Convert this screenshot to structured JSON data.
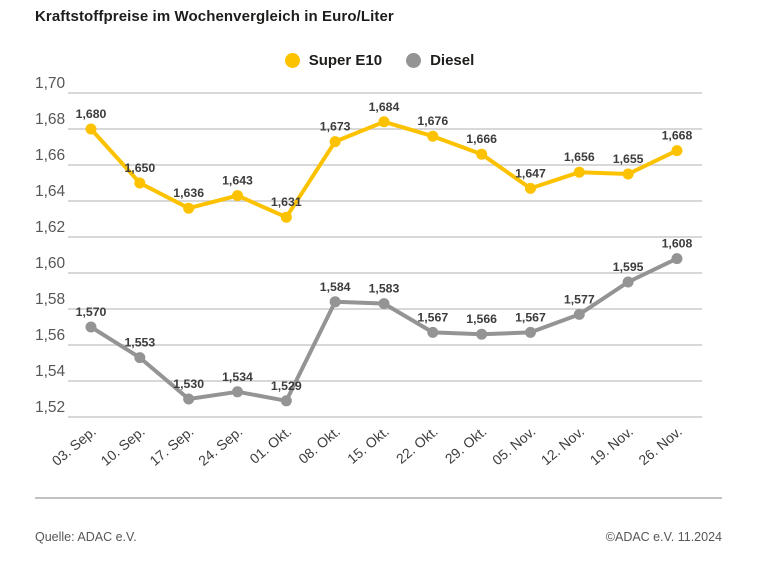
{
  "title": "Kraftstoffpreise im Wochenvergleich in Euro/Liter",
  "legend": [
    {
      "label": "Super E10",
      "color": "#FCC200"
    },
    {
      "label": "Diesel",
      "color": "#949494"
    }
  ],
  "footer": {
    "source": "Quelle: ADAC e.V.",
    "copyright": "©ADAC e.V. 11.2024"
  },
  "colors": {
    "grid": "#cbcbcb",
    "tick_text": "#575756",
    "value_label_text": "#3d3d3d"
  },
  "chart_data": {
    "type": "line",
    "title": "Kraftstoffpreise im Wochenvergleich in Euro/Liter",
    "xlabel": "",
    "ylabel": "Euro/Liter",
    "categories": [
      "03. Sep.",
      "10. Sep.",
      "17. Sep.",
      "24. Sep.",
      "01. Okt.",
      "08. Okt.",
      "15. Okt.",
      "22. Okt.",
      "29. Okt.",
      "05. Nov.",
      "12. Nov.",
      "19. Nov.",
      "26. Nov."
    ],
    "series": [
      {
        "name": "Super E10",
        "color": "#FCC200",
        "values": [
          1.68,
          1.65,
          1.636,
          1.643,
          1.631,
          1.673,
          1.684,
          1.676,
          1.666,
          1.647,
          1.656,
          1.655,
          1.668
        ]
      },
      {
        "name": "Diesel",
        "color": "#949494",
        "values": [
          1.57,
          1.553,
          1.53,
          1.534,
          1.529,
          1.584,
          1.583,
          1.567,
          1.566,
          1.567,
          1.577,
          1.595,
          1.608
        ]
      }
    ],
    "ylim": [
      1.52,
      1.7
    ],
    "ytick_step": 0.02,
    "grid": true,
    "legend_position": "top-center",
    "decimal_separator": ",",
    "tick_decimals": 2,
    "value_decimals": 3,
    "value_labels": "above-points",
    "x_tick_rotation": -40
  }
}
